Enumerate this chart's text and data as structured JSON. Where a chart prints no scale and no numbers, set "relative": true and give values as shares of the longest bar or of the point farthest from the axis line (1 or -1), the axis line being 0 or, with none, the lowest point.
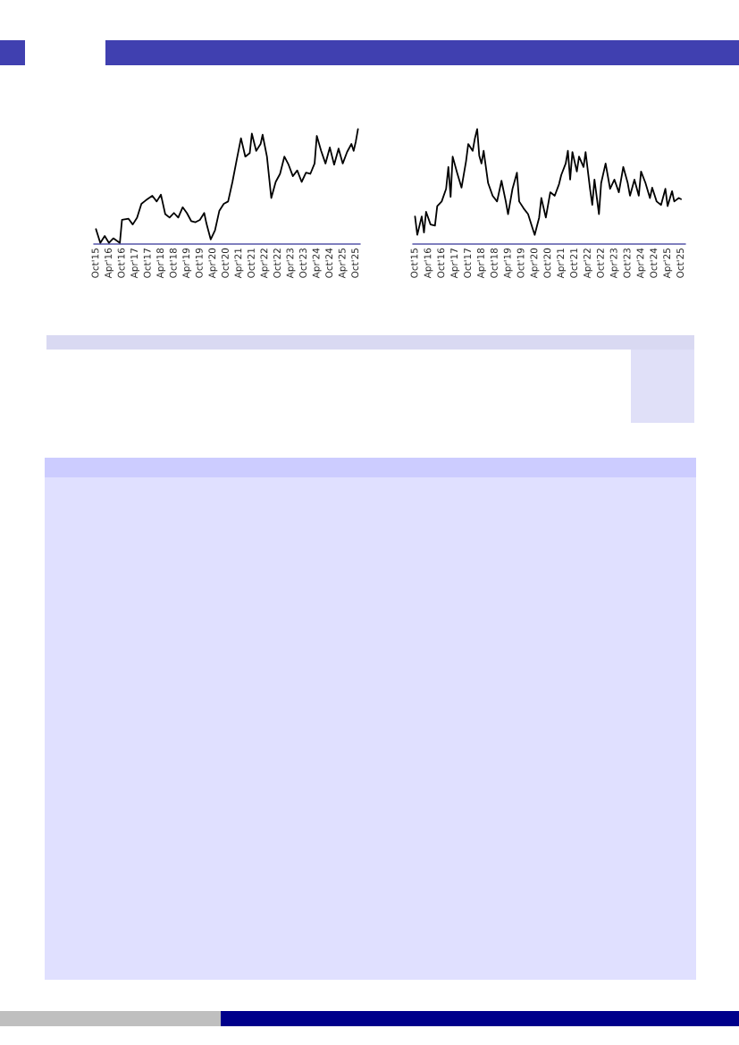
{
  "chart_data": [
    {
      "type": "line",
      "relative": true,
      "xlim": [
        "2015-09",
        "2025-12"
      ],
      "xticks": [
        {
          "value": "2015-10",
          "label": "Oct'15"
        },
        {
          "value": "2016-04",
          "label": "Apr'16"
        },
        {
          "value": "2016-10",
          "label": "Oct'16"
        },
        {
          "value": "2017-04",
          "label": "Apr'17"
        },
        {
          "value": "2017-10",
          "label": "Oct'17"
        },
        {
          "value": "2018-04",
          "label": "Apr'18"
        },
        {
          "value": "2018-10",
          "label": "Oct'18"
        },
        {
          "value": "2019-04",
          "label": "Apr'19"
        },
        {
          "value": "2019-10",
          "label": "Oct'19"
        },
        {
          "value": "2020-04",
          "label": "Apr'20"
        },
        {
          "value": "2020-10",
          "label": "Oct'20"
        },
        {
          "value": "2021-04",
          "label": "Apr'21"
        },
        {
          "value": "2021-10",
          "label": "Oct'21"
        },
        {
          "value": "2022-04",
          "label": "Apr'22"
        },
        {
          "value": "2022-10",
          "label": "Oct'22"
        },
        {
          "value": "2023-04",
          "label": "Apr'23"
        },
        {
          "value": "2023-10",
          "label": "Oct'23"
        },
        {
          "value": "2024-04",
          "label": "Apr'24"
        },
        {
          "value": "2024-10",
          "label": "Oct'24"
        },
        {
          "value": "2025-04",
          "label": "Apr'25"
        },
        {
          "value": "2025-10",
          "label": "Oct'25"
        }
      ],
      "tick_labels": "x",
      "grid": false,
      "legend": false,
      "marker": "none",
      "line_style": "solid",
      "series": [
        {
          "color": "#000000",
          "x": [
            "2015-10",
            "2015-12",
            "2016-02",
            "2016-04",
            "2016-06",
            "2016-09",
            "2016-10",
            "2017-01",
            "2017-03",
            "2017-05",
            "2017-07",
            "2017-09",
            "2017-12",
            "2018-02",
            "2018-04",
            "2018-06",
            "2018-08",
            "2018-10",
            "2018-12",
            "2019-02",
            "2019-04",
            "2019-06",
            "2019-08",
            "2019-10",
            "2019-12",
            "2020-01",
            "2020-03",
            "2020-05",
            "2020-07",
            "2020-09",
            "2020-11",
            "2021-01",
            "2021-03",
            "2021-05",
            "2021-07",
            "2021-09",
            "2021-10",
            "2021-12",
            "2022-02",
            "2022-03",
            "2022-05",
            "2022-07",
            "2022-09",
            "2022-11",
            "2023-01",
            "2023-03",
            "2023-05",
            "2023-07",
            "2023-09",
            "2023-11",
            "2024-01",
            "2024-03",
            "2024-04",
            "2024-06",
            "2024-08",
            "2024-10",
            "2024-12",
            "2025-02",
            "2025-04",
            "2025-06",
            "2025-08",
            "2025-09",
            "2025-10",
            "2025-11"
          ],
          "values": [
            0.13,
            0.01,
            0.07,
            0.01,
            0.05,
            0.01,
            0.21,
            0.22,
            0.17,
            0.23,
            0.35,
            0.38,
            0.42,
            0.37,
            0.43,
            0.26,
            0.23,
            0.27,
            0.23,
            0.32,
            0.27,
            0.2,
            0.19,
            0.21,
            0.27,
            0.18,
            0.04,
            0.12,
            0.29,
            0.35,
            0.37,
            0.54,
            0.73,
            0.92,
            0.76,
            0.79,
            0.96,
            0.81,
            0.87,
            0.95,
            0.76,
            0.4,
            0.54,
            0.61,
            0.76,
            0.69,
            0.59,
            0.64,
            0.54,
            0.62,
            0.61,
            0.7,
            0.94,
            0.81,
            0.7,
            0.84,
            0.69,
            0.83,
            0.7,
            0.8,
            0.87,
            0.81,
            0.89,
            1.0
          ]
        }
      ]
    },
    {
      "type": "line",
      "relative": true,
      "xlim": [
        "2015-09",
        "2025-12"
      ],
      "xticks": [
        {
          "value": "2015-10",
          "label": "Oct'15"
        },
        {
          "value": "2016-04",
          "label": "Apr'16"
        },
        {
          "value": "2016-10",
          "label": "Oct'16"
        },
        {
          "value": "2017-04",
          "label": "Apr'17"
        },
        {
          "value": "2017-10",
          "label": "Oct'17"
        },
        {
          "value": "2018-04",
          "label": "Apr'18"
        },
        {
          "value": "2018-10",
          "label": "Oct'18"
        },
        {
          "value": "2019-04",
          "label": "Apr'19"
        },
        {
          "value": "2019-10",
          "label": "Oct'19"
        },
        {
          "value": "2020-04",
          "label": "Apr'20"
        },
        {
          "value": "2020-10",
          "label": "Oct'20"
        },
        {
          "value": "2021-04",
          "label": "Apr'21"
        },
        {
          "value": "2021-10",
          "label": "Oct'21"
        },
        {
          "value": "2022-04",
          "label": "Apr'22"
        },
        {
          "value": "2022-10",
          "label": "Oct'22"
        },
        {
          "value": "2023-04",
          "label": "Apr'23"
        },
        {
          "value": "2023-10",
          "label": "Oct'23"
        },
        {
          "value": "2024-04",
          "label": "Apr'24"
        },
        {
          "value": "2024-10",
          "label": "Oct'24"
        },
        {
          "value": "2025-04",
          "label": "Apr'25"
        },
        {
          "value": "2025-10",
          "label": "Oct'25"
        }
      ],
      "tick_labels": "x",
      "grid": false,
      "legend": false,
      "marker": "none",
      "line_style": "solid",
      "series": [
        {
          "color": "#000000",
          "x": [
            "2015-10",
            "2015-11",
            "2016-01",
            "2016-02",
            "2016-03",
            "2016-05",
            "2016-07",
            "2016-08",
            "2016-10",
            "2016-12",
            "2017-01",
            "2017-02",
            "2017-03",
            "2017-05",
            "2017-07",
            "2017-09",
            "2017-10",
            "2017-12",
            "2018-01",
            "2018-02",
            "2018-03",
            "2018-04",
            "2018-05",
            "2018-07",
            "2018-09",
            "2018-11",
            "2019-01",
            "2019-03",
            "2019-04",
            "2019-06",
            "2019-08",
            "2019-09",
            "2019-11",
            "2020-01",
            "2020-03",
            "2020-04",
            "2020-06",
            "2020-07",
            "2020-09",
            "2020-11",
            "2021-01",
            "2021-03",
            "2021-04",
            "2021-06",
            "2021-07",
            "2021-08",
            "2021-09",
            "2021-11",
            "2021-12",
            "2022-02",
            "2022-03",
            "2022-05",
            "2022-06",
            "2022-07",
            "2022-09",
            "2022-10",
            "2022-12",
            "2023-02",
            "2023-04",
            "2023-06",
            "2023-08",
            "2023-10",
            "2023-11",
            "2024-01",
            "2024-03",
            "2024-04",
            "2024-06",
            "2024-08",
            "2024-09",
            "2024-11",
            "2025-01",
            "2025-03",
            "2025-04",
            "2025-06",
            "2025-07",
            "2025-09",
            "2025-10"
          ],
          "values": [
            0.24,
            0.08,
            0.24,
            0.1,
            0.28,
            0.17,
            0.16,
            0.33,
            0.37,
            0.48,
            0.67,
            0.41,
            0.76,
            0.62,
            0.49,
            0.72,
            0.87,
            0.81,
            0.92,
            1.0,
            0.77,
            0.7,
            0.81,
            0.53,
            0.42,
            0.37,
            0.55,
            0.37,
            0.26,
            0.48,
            0.62,
            0.37,
            0.31,
            0.26,
            0.14,
            0.08,
            0.23,
            0.4,
            0.23,
            0.45,
            0.42,
            0.52,
            0.6,
            0.7,
            0.81,
            0.56,
            0.8,
            0.63,
            0.76,
            0.67,
            0.8,
            0.48,
            0.34,
            0.56,
            0.26,
            0.53,
            0.7,
            0.48,
            0.56,
            0.45,
            0.67,
            0.53,
            0.42,
            0.56,
            0.42,
            0.63,
            0.53,
            0.4,
            0.49,
            0.37,
            0.34,
            0.48,
            0.33,
            0.46,
            0.37,
            0.4,
            0.39
          ]
        }
      ]
    }
  ]
}
